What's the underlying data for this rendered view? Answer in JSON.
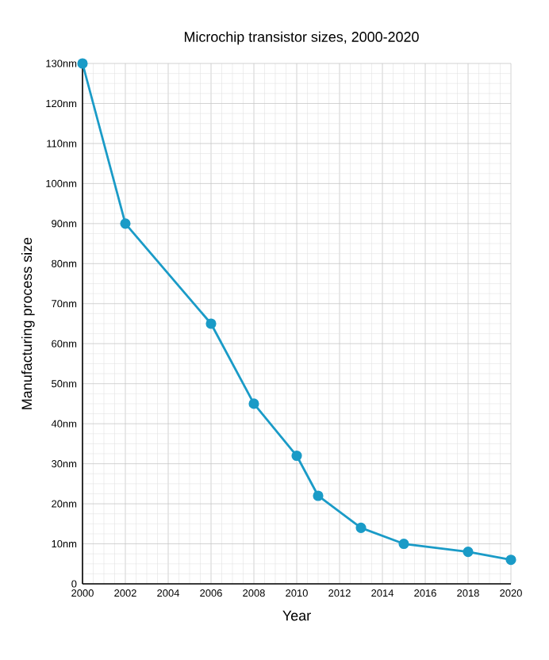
{
  "chart_data": {
    "type": "line",
    "title": "Microchip transistor sizes, 2000-2020",
    "xlabel": "Year",
    "ylabel": "Manufacturing process size",
    "x": [
      2000,
      2002,
      2006,
      2008,
      2010,
      2011,
      2013,
      2015,
      2018,
      2020
    ],
    "series": [
      {
        "color": "#1a9bc7",
        "values": [
          130,
          90,
          65,
          45,
          32,
          22,
          14,
          10,
          8,
          6
        ]
      }
    ],
    "xlim": [
      2000,
      2020
    ],
    "xticks": [
      2000,
      2002,
      2004,
      2006,
      2008,
      2010,
      2012,
      2014,
      2016,
      2018,
      2020
    ],
    "ylim": [
      0,
      130
    ],
    "yticks": [
      0,
      {
        "value": 10,
        "label": "10nm"
      },
      {
        "value": 20,
        "label": "20nm"
      },
      {
        "value": 30,
        "label": "30nm"
      },
      {
        "value": 40,
        "label": "40nm"
      },
      {
        "value": 50,
        "label": "50nm"
      },
      {
        "value": 60,
        "label": "60nm"
      },
      {
        "value": 70,
        "label": "70nm"
      },
      {
        "value": 80,
        "label": "80nm"
      },
      {
        "value": 90,
        "label": "90nm"
      },
      {
        "value": 100,
        "label": "100nm"
      },
      {
        "value": 110,
        "label": "110nm"
      },
      {
        "value": 120,
        "label": "120nm"
      },
      {
        "value": 130,
        "label": "130nm"
      }
    ],
    "grid": true,
    "marker": "circle",
    "line_style": "solid"
  }
}
